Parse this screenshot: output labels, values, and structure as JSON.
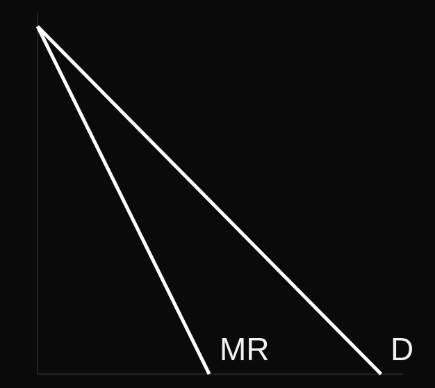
{
  "chart_data": {
    "type": "line",
    "title": "",
    "xlabel": "",
    "ylabel": "",
    "xlim": [
      0,
      100
    ],
    "ylim": [
      0,
      100
    ],
    "grid": false,
    "axis_color": "#3a3a3a",
    "line_color": "#ffffff",
    "background": "#0a0a0a",
    "series": [
      {
        "name": "MR",
        "points": [
          [
            0,
            100
          ],
          [
            47,
            0
          ]
        ]
      },
      {
        "name": "D",
        "points": [
          [
            0,
            100
          ],
          [
            94,
            0
          ]
        ]
      }
    ]
  }
}
